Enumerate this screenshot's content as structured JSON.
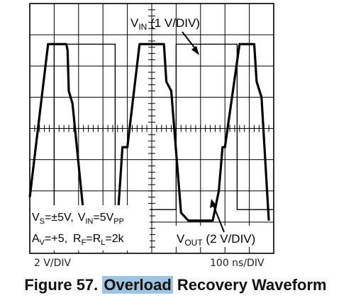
{
  "chart_data": {
    "type": "line",
    "divisions": {
      "x": 10,
      "y": 8
    },
    "grid": true,
    "series": [
      {
        "name": "VIN (1 V/DIV)",
        "name_parts": {
          "main": "V",
          "sub": "IN",
          "rest": " (1 V/DIV)"
        },
        "points": [
          [
            0,
            -2.6
          ],
          [
            1.0,
            -2.6
          ],
          [
            1.0,
            2.7
          ],
          [
            3.5,
            2.7
          ],
          [
            3.5,
            -2.6
          ],
          [
            6.0,
            -2.6
          ],
          [
            6.0,
            2.7
          ],
          [
            8.5,
            2.7
          ],
          [
            8.5,
            -2.6
          ],
          [
            10,
            -2.6
          ]
        ]
      },
      {
        "name": "VOUT (2 V/DIV)",
        "name_parts": {
          "main": "V",
          "sub": "OUT",
          "rest": " (2 V/DIV)"
        },
        "points": [
          [
            0,
            -2.2
          ],
          [
            0.75,
            2.7
          ],
          [
            1.5,
            2.7
          ],
          [
            1.55,
            2.5
          ],
          [
            1.6,
            1.2
          ],
          [
            1.75,
            0.8
          ],
          [
            2.2,
            -2.7
          ],
          [
            2.55,
            -2.95
          ],
          [
            3.6,
            -2.95
          ],
          [
            3.8,
            -0.6
          ],
          [
            4.0,
            -0.6
          ],
          [
            4.5,
            2.7
          ],
          [
            5.5,
            2.7
          ],
          [
            5.6,
            1.5
          ],
          [
            5.8,
            1.2
          ],
          [
            6.2,
            -2.7
          ],
          [
            6.5,
            -2.95
          ],
          [
            7.5,
            -2.95
          ],
          [
            7.75,
            -2.0
          ],
          [
            7.9,
            -0.6
          ],
          [
            8.0,
            -0.6
          ],
          [
            8.6,
            2.7
          ],
          [
            9.2,
            2.7
          ],
          [
            9.3,
            1.5
          ],
          [
            9.5,
            1.0
          ],
          [
            9.8,
            -2.95
          ]
        ]
      }
    ],
    "conditions": {
      "line1": {
        "v": "V",
        "s_sub": "S",
        "s_text": "=±5V,",
        "vin_sub": "IN",
        "vin_text": "=5V",
        "pp_sub": "PP"
      },
      "line2": {
        "a": "A",
        "v_sub": "V",
        "av_text": "=+5,",
        "r": "R",
        "f_sub": "F",
        "eq1": "=R",
        "l_sub": "L",
        "rl_text": "=2k"
      }
    },
    "x_scale": "100 ns/DIV",
    "y_scale": "2 V/DIV"
  },
  "caption": {
    "prefix": "Figure 57. ",
    "highlight": "Overload",
    "suffix": " Recovery Waveform"
  }
}
